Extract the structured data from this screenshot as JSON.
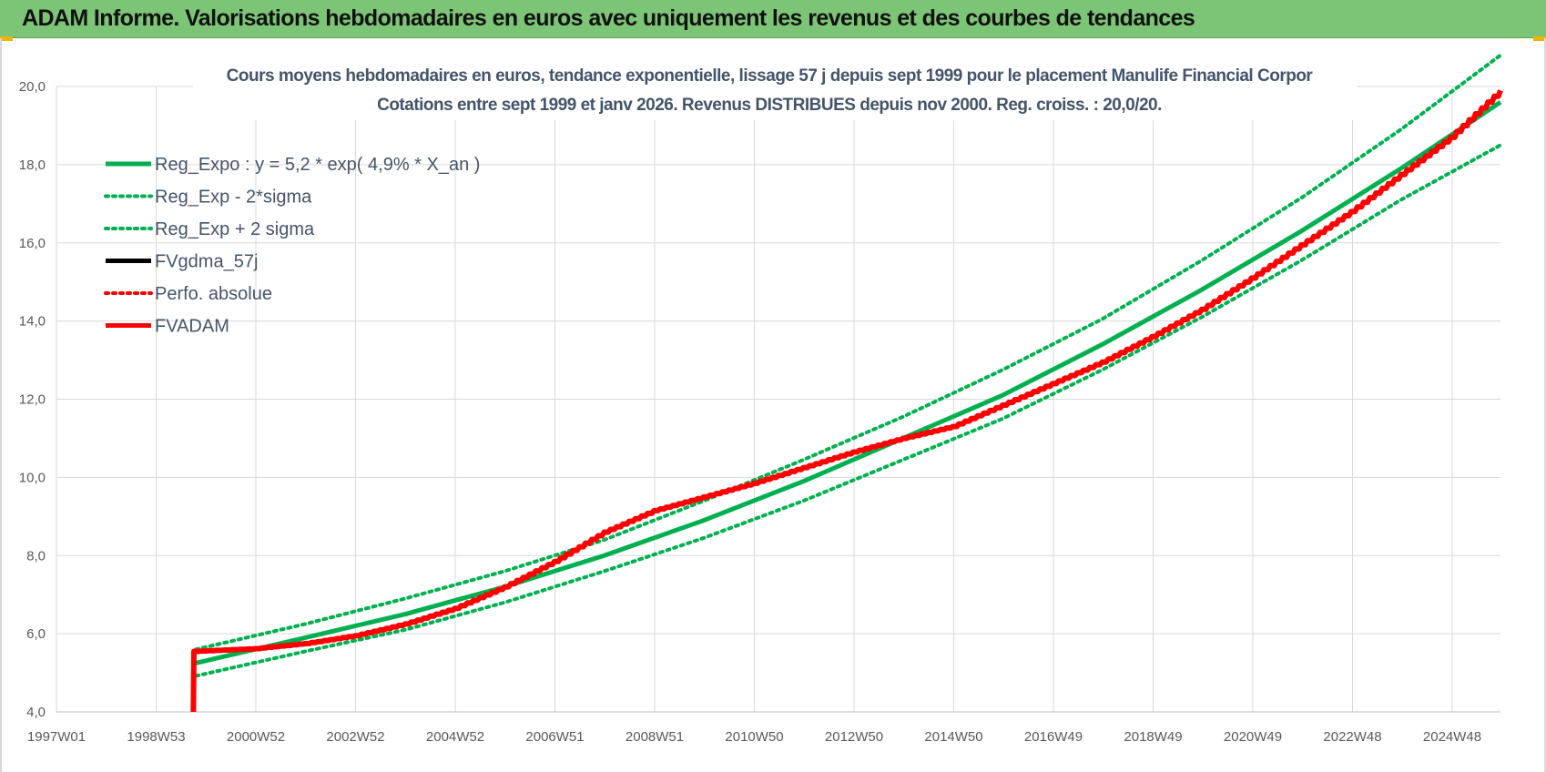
{
  "header": {
    "title": "ADAM Informe. Valorisations hebdomadaires en euros avec uniquement les revenus et des courbes de tendances"
  },
  "chart_data": {
    "type": "line",
    "title": "Cours moyens  hebdomadaires en euros, tendance exponentielle, lissage 57 j depuis sept 1999 pour le placement Manulife Financial Corpor",
    "subtitle": "Cotations entre sept 1999 et janv 2026. Revenus DISTRIBUES  depuis nov 2000. Reg. croiss. : 20,0/20.",
    "xlabel": "",
    "ylabel": "",
    "ylim": [
      4.0,
      20.0
    ],
    "xlim": [
      1997.0,
      2026.0
    ],
    "y_ticks": [
      "4,0",
      "6,0",
      "8,0",
      "10,0",
      "12,0",
      "14,0",
      "16,0",
      "18,0",
      "20,0"
    ],
    "x_ticks": [
      "1997W01",
      "1998W53",
      "2000W52",
      "2002W52",
      "2004W52",
      "2006W51",
      "2008W51",
      "2010W50",
      "2012W50",
      "2014W50",
      "2016W49",
      "2018W49",
      "2020W49",
      "2022W48",
      "2024W48"
    ],
    "grid": true,
    "legend_position": "top-left",
    "series": [
      {
        "name": "Reg_Expo : y = 5,2 * exp( 4,9% *  X_an )",
        "color": "#00b050",
        "style": "solid",
        "x": [
          1999.8,
          2002,
          2004,
          2006,
          2008,
          2010,
          2012,
          2014,
          2016,
          2018,
          2020,
          2022,
          2024,
          2026
        ],
        "values": [
          5.25,
          5.9,
          6.5,
          7.2,
          8.0,
          8.9,
          9.9,
          11.0,
          12.1,
          13.4,
          14.8,
          16.3,
          17.9,
          19.6
        ]
      },
      {
        "name": "Reg_Exp - 2*sigma",
        "color": "#00b050",
        "style": "dotted",
        "x": [
          1999.8,
          2002,
          2004,
          2006,
          2008,
          2010,
          2012,
          2014,
          2016,
          2018,
          2020,
          2022,
          2024,
          2026
        ],
        "values": [
          4.92,
          5.55,
          6.1,
          6.8,
          7.6,
          8.45,
          9.4,
          10.45,
          11.5,
          12.75,
          14.1,
          15.55,
          17.1,
          18.5
        ]
      },
      {
        "name": "Reg_Exp + 2 sigma",
        "color": "#00b050",
        "style": "dotted",
        "x": [
          1999.8,
          2002,
          2004,
          2006,
          2008,
          2010,
          2012,
          2014,
          2016,
          2018,
          2020,
          2022,
          2024,
          2026
        ],
        "values": [
          5.6,
          6.25,
          6.9,
          7.6,
          8.4,
          9.4,
          10.45,
          11.55,
          12.75,
          14.05,
          15.55,
          17.15,
          18.9,
          20.8
        ]
      },
      {
        "name": "FVgdma_57j",
        "color": "#000000",
        "style": "solid",
        "x": [],
        "values": []
      },
      {
        "name": "Perfo. absolue",
        "color": "#ff0000",
        "style": "dotted",
        "x": [],
        "values": []
      },
      {
        "name": "FVADAM",
        "color": "#ff0000",
        "style": "solid",
        "x": [
          1999.75,
          1999.76,
          2001,
          2002,
          2003,
          2004,
          2005,
          2006,
          2007,
          2008,
          2009,
          2010,
          2011,
          2012,
          2013,
          2014,
          2015,
          2016,
          2017,
          2018,
          2019,
          2020,
          2021,
          2022,
          2023,
          2024,
          2025,
          2026
        ],
        "values": [
          4.0,
          5.55,
          5.62,
          5.75,
          5.95,
          6.25,
          6.65,
          7.2,
          7.85,
          8.6,
          9.15,
          9.5,
          9.85,
          10.25,
          10.65,
          11.0,
          11.3,
          11.85,
          12.4,
          12.95,
          13.6,
          14.3,
          15.1,
          15.95,
          16.8,
          17.75,
          18.7,
          19.9
        ]
      }
    ]
  }
}
